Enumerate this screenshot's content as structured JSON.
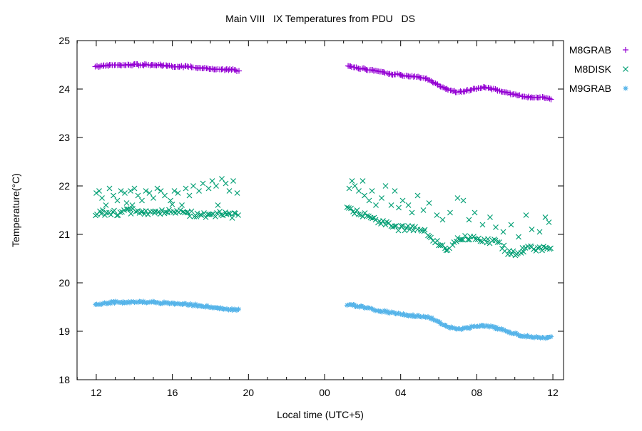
{
  "chart_data": {
    "type": "scatter",
    "title": "Main VIII   IX Temperatures from PDU   DS",
    "xlabel": "Local time (UTC+5)",
    "ylabel": "Temperature(°C)",
    "background_color": "#ffffff",
    "grid": false,
    "x_axis": {
      "description": "local time in hours, 24 = midnight of next day",
      "range_hours": [
        10.99,
        36.56
      ],
      "major_ticks": [
        [
          12,
          "12"
        ],
        [
          16,
          "16"
        ],
        [
          20,
          "20"
        ],
        [
          24,
          "00"
        ],
        [
          28,
          "04"
        ],
        [
          32,
          "08"
        ],
        [
          36,
          "12"
        ]
      ],
      "minor_tick_every_hours": 1
    },
    "y_axis": {
      "range": [
        18,
        25
      ],
      "tick_step": 1,
      "tick_labels": [
        "18",
        "19",
        "20",
        "21",
        "22",
        "23",
        "24",
        "25"
      ]
    },
    "legend": {
      "position": "outside-top-right",
      "entries": [
        {
          "label": "M8GRAB",
          "marker": "plus",
          "color": "#9400d3"
        },
        {
          "label": "M8DISK",
          "marker": "cross",
          "color": "#009e73"
        },
        {
          "label": "M9GRAB",
          "marker": "asterisk",
          "color": "#56b4e9"
        }
      ]
    },
    "series": [
      {
        "name": "M8GRAB",
        "marker": "plus",
        "color": "#9400d3",
        "segments": [
          {
            "trend": [
              [
                11.95,
                24.46
              ],
              [
                12.3,
                24.48
              ],
              [
                13,
                24.5
              ],
              [
                14,
                24.5
              ],
              [
                15,
                24.5
              ],
              [
                15.7,
                24.48
              ],
              [
                16.2,
                24.46
              ],
              [
                16.8,
                24.47
              ],
              [
                17.3,
                24.44
              ],
              [
                18,
                24.42
              ],
              [
                18.6,
                24.4
              ],
              [
                19.1,
                24.4
              ],
              [
                19.54,
                24.37
              ]
            ],
            "noise": 0.015,
            "samples_per_hour": 13,
            "scatter": []
          },
          {
            "trend": [
              [
                25.2,
                24.47
              ],
              [
                25.6,
                24.44
              ],
              [
                26,
                24.42
              ],
              [
                26.5,
                24.39
              ],
              [
                27,
                24.36
              ],
              [
                27.4,
                24.32
              ],
              [
                27.8,
                24.3
              ],
              [
                28.2,
                24.28
              ],
              [
                28.6,
                24.26
              ],
              [
                29,
                24.24
              ],
              [
                29.4,
                24.2
              ],
              [
                29.8,
                24.12
              ],
              [
                30.2,
                24.03
              ],
              [
                30.6,
                23.97
              ],
              [
                31,
                23.94
              ],
              [
                31.4,
                23.96
              ],
              [
                31.8,
                24.0
              ],
              [
                32.2,
                24.03
              ],
              [
                32.6,
                24.02
              ],
              [
                33,
                23.99
              ],
              [
                33.4,
                23.94
              ],
              [
                33.8,
                23.9
              ],
              [
                34.2,
                23.87
              ],
              [
                34.6,
                23.84
              ],
              [
                35,
                23.82
              ],
              [
                35.4,
                23.83
              ],
              [
                35.9,
                23.8
              ]
            ],
            "noise": 0.015,
            "samples_per_hour": 13,
            "scatter": []
          }
        ]
      },
      {
        "name": "M8DISK",
        "marker": "cross",
        "color": "#009e73",
        "segments": [
          {
            "trend": [
              [
                11.95,
                21.45
              ],
              [
                13,
                21.45
              ],
              [
                14,
                21.47
              ],
              [
                15,
                21.45
              ],
              [
                16,
                21.45
              ],
              [
                17,
                21.43
              ],
              [
                18,
                21.4
              ],
              [
                18.5,
                21.42
              ],
              [
                19,
                21.38
              ],
              [
                19.5,
                21.38
              ]
            ],
            "noise": 0.06,
            "samples_per_hour": 10,
            "scatter": [
              [
                12.0,
                21.85
              ],
              [
                12.15,
                21.9
              ],
              [
                12.3,
                21.75
              ],
              [
                12.5,
                21.6
              ],
              [
                12.7,
                21.95
              ],
              [
                12.9,
                21.8
              ],
              [
                13.1,
                21.7
              ],
              [
                13.3,
                21.9
              ],
              [
                13.5,
                21.85
              ],
              [
                13.6,
                21.65
              ],
              [
                13.8,
                21.9
              ],
              [
                14.0,
                21.95
              ],
              [
                14.2,
                21.8
              ],
              [
                14.4,
                21.7
              ],
              [
                14.6,
                21.9
              ],
              [
                14.8,
                21.85
              ],
              [
                15.0,
                21.75
              ],
              [
                15.2,
                21.95
              ],
              [
                15.4,
                21.9
              ],
              [
                15.6,
                21.8
              ],
              [
                15.9,
                21.7
              ],
              [
                16.1,
                21.9
              ],
              [
                16.3,
                21.85
              ],
              [
                16.5,
                21.6
              ],
              [
                16.7,
                21.95
              ],
              [
                16.9,
                21.8
              ],
              [
                17.1,
                22.0
              ],
              [
                17.4,
                21.9
              ],
              [
                17.6,
                22.05
              ],
              [
                17.9,
                21.95
              ],
              [
                18.1,
                22.1
              ],
              [
                18.3,
                22.0
              ],
              [
                18.6,
                22.15
              ],
              [
                18.8,
                22.05
              ],
              [
                19.0,
                21.9
              ],
              [
                19.2,
                22.1
              ],
              [
                19.4,
                21.85
              ],
              [
                13.9,
                21.6
              ],
              [
                16.0,
                21.62
              ],
              [
                18.4,
                21.6
              ]
            ]
          },
          {
            "trend": [
              [
                25.2,
                21.5
              ],
              [
                25.7,
                21.45
              ],
              [
                26.4,
                21.35
              ],
              [
                27.2,
                21.25
              ],
              [
                27.9,
                21.12
              ],
              [
                28.7,
                21.12
              ],
              [
                29.3,
                21.05
              ],
              [
                29.8,
                20.85
              ],
              [
                30.4,
                20.7
              ],
              [
                31.0,
                20.9
              ],
              [
                31.7,
                20.95
              ],
              [
                32.4,
                20.9
              ],
              [
                33.2,
                20.8
              ],
              [
                33.6,
                20.65
              ],
              [
                34.1,
                20.62
              ],
              [
                34.7,
                20.7
              ],
              [
                35.3,
                20.72
              ],
              [
                35.9,
                20.75
              ]
            ],
            "noise": 0.06,
            "samples_per_hour": 10,
            "scatter": [
              [
                25.3,
                21.95
              ],
              [
                25.45,
                22.1
              ],
              [
                25.6,
                22.0
              ],
              [
                25.8,
                21.9
              ],
              [
                26.0,
                22.1
              ],
              [
                26.1,
                21.8
              ],
              [
                26.35,
                21.7
              ],
              [
                26.5,
                21.9
              ],
              [
                26.7,
                21.6
              ],
              [
                27.0,
                21.75
              ],
              [
                27.2,
                22.0
              ],
              [
                27.5,
                21.6
              ],
              [
                27.7,
                21.9
              ],
              [
                27.9,
                21.55
              ],
              [
                28.1,
                21.7
              ],
              [
                28.4,
                21.6
              ],
              [
                28.6,
                21.45
              ],
              [
                28.9,
                21.8
              ],
              [
                29.2,
                21.5
              ],
              [
                29.5,
                21.65
              ],
              [
                29.9,
                21.4
              ],
              [
                30.2,
                21.3
              ],
              [
                30.6,
                21.45
              ],
              [
                31.0,
                21.75
              ],
              [
                31.3,
                21.7
              ],
              [
                31.6,
                21.3
              ],
              [
                31.9,
                21.45
              ],
              [
                32.3,
                21.2
              ],
              [
                32.7,
                21.35
              ],
              [
                33.0,
                21.15
              ],
              [
                33.4,
                21.05
              ],
              [
                33.8,
                21.2
              ],
              [
                34.2,
                20.95
              ],
              [
                34.6,
                21.4
              ],
              [
                34.9,
                21.1
              ],
              [
                35.3,
                21.05
              ],
              [
                35.6,
                21.35
              ],
              [
                35.8,
                21.25
              ]
            ]
          }
        ]
      },
      {
        "name": "M9GRAB",
        "marker": "asterisk",
        "color": "#56b4e9",
        "segments": [
          {
            "trend": [
              [
                11.95,
                19.55
              ],
              [
                12.5,
                19.58
              ],
              [
                13,
                19.6
              ],
              [
                14,
                19.6
              ],
              [
                15,
                19.6
              ],
              [
                15.7,
                19.58
              ],
              [
                16.3,
                19.56
              ],
              [
                17,
                19.55
              ],
              [
                17.5,
                19.52
              ],
              [
                18,
                19.5
              ],
              [
                18.5,
                19.47
              ],
              [
                19,
                19.45
              ],
              [
                19.54,
                19.44
              ]
            ],
            "noise": 0.02,
            "samples_per_hour": 13,
            "scatter": []
          },
          {
            "trend": [
              [
                25.2,
                19.55
              ],
              [
                25.7,
                19.52
              ],
              [
                26.2,
                19.48
              ],
              [
                26.7,
                19.44
              ],
              [
                27.2,
                19.4
              ],
              [
                27.7,
                19.37
              ],
              [
                28.2,
                19.34
              ],
              [
                28.7,
                19.32
              ],
              [
                29.2,
                19.3
              ],
              [
                29.6,
                19.27
              ],
              [
                30.0,
                19.2
              ],
              [
                30.4,
                19.1
              ],
              [
                30.8,
                19.06
              ],
              [
                31.2,
                19.05
              ],
              [
                31.6,
                19.08
              ],
              [
                32.0,
                19.1
              ],
              [
                32.4,
                19.11
              ],
              [
                32.8,
                19.09
              ],
              [
                33.2,
                19.05
              ],
              [
                33.6,
                18.99
              ],
              [
                34.0,
                18.95
              ],
              [
                34.4,
                18.91
              ],
              [
                34.8,
                18.89
              ],
              [
                35.2,
                18.88
              ],
              [
                35.6,
                18.87
              ],
              [
                35.9,
                18.88
              ]
            ],
            "noise": 0.02,
            "samples_per_hour": 13,
            "scatter": []
          }
        ]
      }
    ]
  }
}
